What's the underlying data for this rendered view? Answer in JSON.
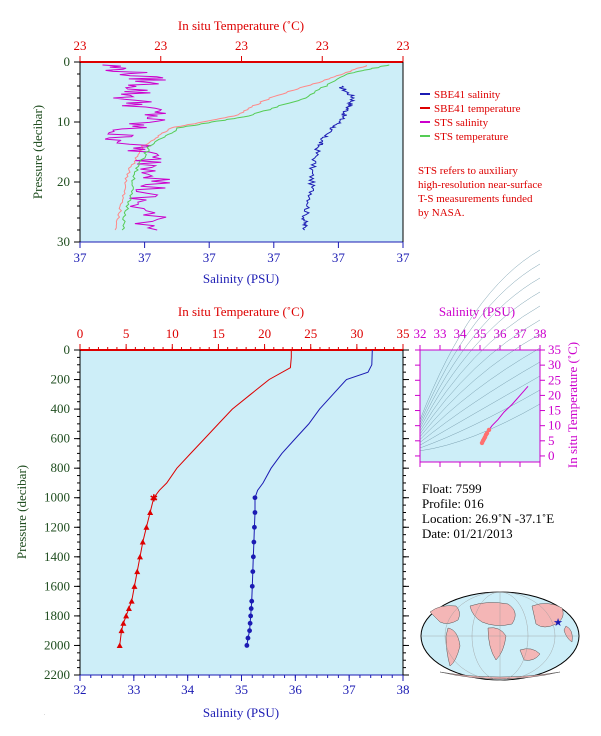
{
  "top_chart": {
    "x_top_label": "In situ Temperature (˚C)",
    "x_top_ticks": [
      "23",
      "23",
      "23",
      "23",
      "23"
    ],
    "x_bottom_label": "Salinity (PSU)",
    "x_bottom_ticks": [
      "37",
      "37",
      "37",
      "37",
      "37",
      "37"
    ],
    "y_label": "Pressure (decibar)",
    "y_ticks": [
      "0",
      "10",
      "20",
      "30"
    ],
    "legend": [
      {
        "label": "SBE41 salinity",
        "color": "#1b1bb3"
      },
      {
        "label": "SBE41 temperature",
        "color": "#dd0000"
      },
      {
        "label": "STS salinity",
        "color": "#cc00cc"
      },
      {
        "label": "STS temperature",
        "color": "#55cc55"
      }
    ],
    "note_lines": [
      "STS refers to auxiliary",
      "high-resolution near-surface",
      "T-S measurements funded",
      "by NASA."
    ]
  },
  "main_chart": {
    "x_top_label": "In situ Temperature (˚C)",
    "x_top_ticks": [
      "0",
      "5",
      "10",
      "15",
      "20",
      "25",
      "30",
      "35"
    ],
    "x_bottom_label": "Salinity (PSU)",
    "x_bottom_ticks": [
      "32",
      "33",
      "34",
      "35",
      "36",
      "37",
      "38"
    ],
    "y_label": "Pressure (decibar)",
    "y_ticks": [
      "0",
      "200",
      "400",
      "600",
      "800",
      "1000",
      "1200",
      "1400",
      "1600",
      "1800",
      "2000",
      "2200"
    ]
  },
  "ts_chart": {
    "x_label": "Salinity (PSU)",
    "x_ticks": [
      "32",
      "33",
      "34",
      "35",
      "36",
      "37",
      "38"
    ],
    "y_label": "In situ Temperature (˚C)",
    "y_ticks": [
      "35",
      "30",
      "25",
      "20",
      "15",
      "10",
      "5",
      "0"
    ]
  },
  "float_info": {
    "float": "Float:  7599",
    "profile": "Profile:  016",
    "location": "Location:  26.9˚N  -37.1˚E",
    "date": "Date:  01/21/2013"
  },
  "colors": {
    "temperature": "#dd0000",
    "salinity": "#1b1bb3",
    "sts_salinity": "#cc00cc",
    "sts_temperature": "#55cc55",
    "plot_bg": "#cdeef8"
  },
  "chart_data": [
    {
      "type": "line",
      "title": "",
      "xlabel": "Salinity (PSU)",
      "ylabel": "Pressure (decibar)",
      "ylim": [
        30,
        0
      ],
      "series": [
        {
          "name": "SBE41 salinity",
          "x": [
            37.35,
            37.37,
            37.36,
            37.35,
            37.33,
            37.32,
            37.31,
            37.31,
            37.3,
            37.3
          ],
          "y": [
            4,
            6,
            8,
            10,
            12,
            14,
            18,
            22,
            26,
            28
          ]
        },
        {
          "name": "SBE41 temperature",
          "x": [
            37.39,
            37.33,
            37.25,
            37.2,
            37.11,
            37.07,
            37.05,
            37.04,
            37.03
          ],
          "y": [
            0.5,
            3,
            6,
            9,
            11,
            14,
            18,
            23,
            28
          ]
        },
        {
          "name": "STS salinity",
          "x": [
            37.02,
            37.08,
            37.05,
            37.09,
            37.03,
            37.07,
            37.1,
            37.06,
            37.09
          ],
          "y": [
            0.5,
            3,
            6,
            9,
            12,
            15,
            19,
            23,
            28
          ]
        },
        {
          "name": "STS temperature",
          "x": [
            37.42,
            37.36,
            37.3,
            37.22,
            37.12,
            37.08,
            37.06,
            37.05,
            37.04
          ],
          "y": [
            0.5,
            2,
            6,
            9,
            11,
            14,
            18,
            23,
            28
          ]
        }
      ]
    },
    {
      "type": "line",
      "title": "",
      "xlabel": "Salinity (PSU)",
      "ylabel": "Pressure (decibar)",
      "xlim": [
        32,
        38
      ],
      "ylim": [
        2200,
        0
      ],
      "series": [
        {
          "name": "",
          "variable": "temperature",
          "x": [
            22.9,
            22.9,
            22.8,
            20.5,
            18.5,
            16.5,
            15.0,
            13.5,
            12.0,
            10.5,
            9.4,
            8.6,
            8.0,
            7.6,
            7.2,
            6.8,
            6.5,
            6.2,
            5.9,
            5.6,
            5.3,
            5.0,
            4.7,
            4.5,
            4.3
          ],
          "y": [
            0,
            50,
            120,
            200,
            300,
            400,
            500,
            600,
            700,
            800,
            900,
            950,
            1000,
            1100,
            1200,
            1300,
            1400,
            1500,
            1600,
            1700,
            1750,
            1800,
            1850,
            1900,
            2000
          ]
        },
        {
          "name": "",
          "variable": "salinity",
          "x": [
            37.43,
            37.42,
            37.35,
            36.95,
            36.7,
            36.45,
            36.25,
            36.0,
            35.75,
            35.55,
            35.4,
            35.3,
            35.25,
            35.25,
            35.24,
            35.23,
            35.22,
            35.21,
            35.2,
            35.19,
            35.18,
            35.17,
            35.16,
            35.15,
            35.12,
            35.1
          ],
          "y": [
            0,
            100,
            150,
            200,
            300,
            400,
            500,
            600,
            700,
            800,
            900,
            950,
            1000,
            1100,
            1200,
            1300,
            1400,
            1500,
            1600,
            1700,
            1750,
            1800,
            1850,
            1900,
            1950,
            2000
          ]
        }
      ]
    },
    {
      "type": "scatter",
      "title": "",
      "xlabel": "Salinity (PSU)",
      "ylabel": "In situ Temperature (˚C)",
      "xlim": [
        32,
        38
      ],
      "ylim": [
        -2,
        35
      ],
      "series": [
        {
          "name": "",
          "x": [
            37.4,
            37.0,
            36.6,
            36.2,
            35.9,
            35.6,
            35.45,
            35.35,
            35.3,
            35.25,
            35.2,
            35.15,
            35.1
          ],
          "y": [
            23,
            20,
            17,
            14.5,
            12,
            10,
            8.6,
            7.5,
            7.0,
            6.2,
            5.6,
            5.0,
            4.3
          ]
        }
      ]
    }
  ]
}
